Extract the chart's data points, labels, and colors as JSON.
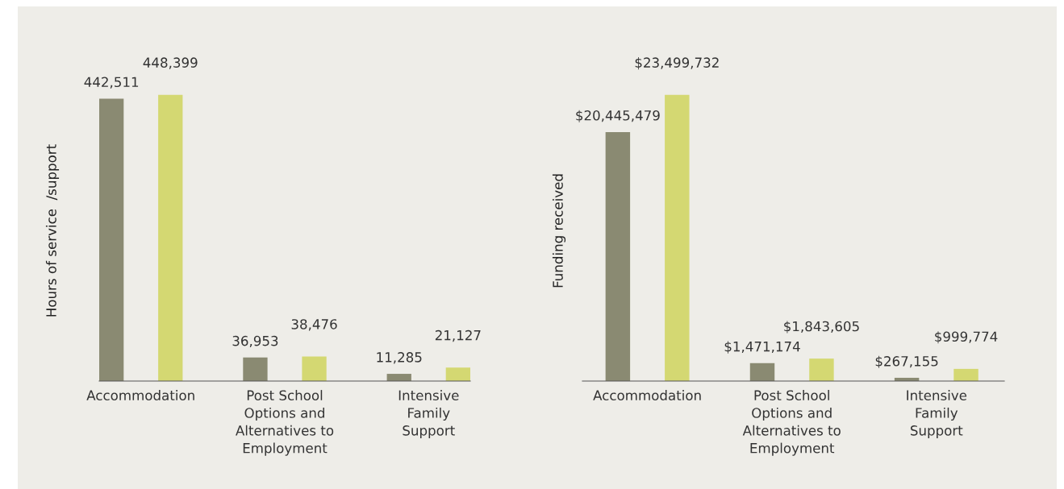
{
  "chart_data": [
    {
      "type": "bar",
      "ylabel": "Hours of service  /support",
      "categories": [
        "Accommodation",
        "Post School\nOptions and\nAlternatives to\nEmployment",
        "Intensive\nFamily\nSupport"
      ],
      "tick_labels": "x",
      "series": [
        {
          "color": "#8a8a72",
          "values": [
            442511,
            36953,
            11285
          ],
          "value_labels": [
            "442,511",
            "36,953",
            "11,285"
          ]
        },
        {
          "color": "#d4d872",
          "values": [
            448399,
            38476,
            21127
          ],
          "value_labels": [
            "448,399",
            "38,476",
            "21,127"
          ]
        }
      ]
    },
    {
      "type": "bar",
      "ylabel": "Funding received",
      "categories": [
        "Accommodation",
        "Post School\nOptions and\nAlternatives to\nEmployment",
        "Intensive\nFamily\nSupport"
      ],
      "tick_labels": "x",
      "series": [
        {
          "color": "#8a8a72",
          "values": [
            20445479,
            1471174,
            267155
          ],
          "value_labels": [
            "$20,445,479",
            "$1,471,174",
            "$267,155"
          ]
        },
        {
          "color": "#d4d872",
          "values": [
            23499732,
            1843605,
            999774
          ],
          "value_labels": [
            "$23,499,732",
            "$1,843,605",
            "$999,774"
          ]
        }
      ]
    }
  ]
}
